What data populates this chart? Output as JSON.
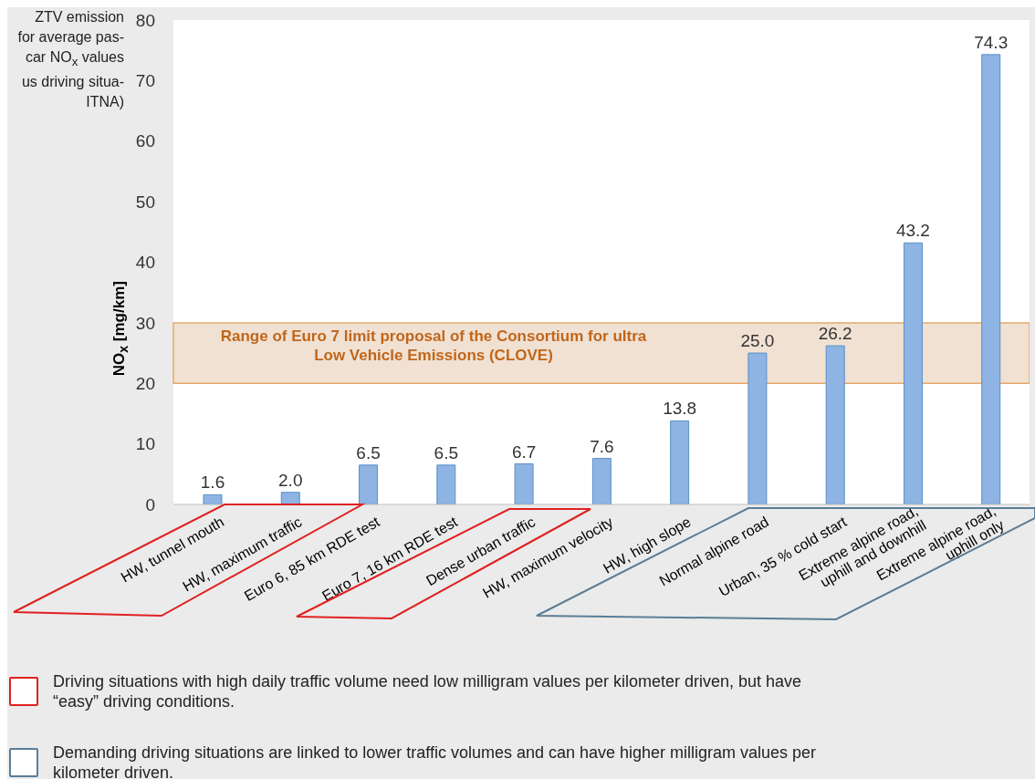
{
  "chart_data": {
    "type": "bar",
    "ylabel": "NO$_{x}$ [mg/km]",
    "categories": [
      "HW, tunnel mouth",
      "HW, maximum traffic",
      "Euro 6, 85 km RDE test",
      "Euro 7, 16 km RDE test",
      "Dense urban traffic",
      "HW, maximum velocity",
      "HW, high slope",
      "Normal alpine road",
      "Urban, 35 % cold start",
      "Extreme alpine road, uphill and downhill",
      "Extreme alpine road, uphill only"
    ],
    "values": [
      1.6,
      2.0,
      6.5,
      6.5,
      6.7,
      7.6,
      13.8,
      25.0,
      26.2,
      43.2,
      74.3
    ],
    "value_labels": [
      "1.6",
      "2.0",
      "6.5",
      "6.5",
      "6.7",
      "7.6",
      "13.8",
      "25.0",
      "26.2",
      "43.2",
      "74.3"
    ],
    "color": "#8db4e2",
    "ylim": [
      0,
      80
    ],
    "yticks": [
      0,
      10,
      20,
      30,
      40,
      50,
      60,
      70,
      80
    ],
    "bands": [
      {
        "axis": "y",
        "from": 20,
        "to": 30,
        "label": "Range of Euro 7 limit proposal of the Consortium for ultra Low Vehicle Emissions (CLOVE)",
        "color": "#e3c8ae"
      }
    ],
    "annotations": [
      "ZTV emission\nfor average pas-\ncar NO$_{x}$ values\nus driving situa-\nITNA)",
      "Driving situations with high daily traffic volume need low milligram values per kilometer driven, but have “easy” driving conditions.",
      "Demanding driving situations are linked to lower traffic volumes and can have higher milligram values per kilometer driven."
    ]
  }
}
